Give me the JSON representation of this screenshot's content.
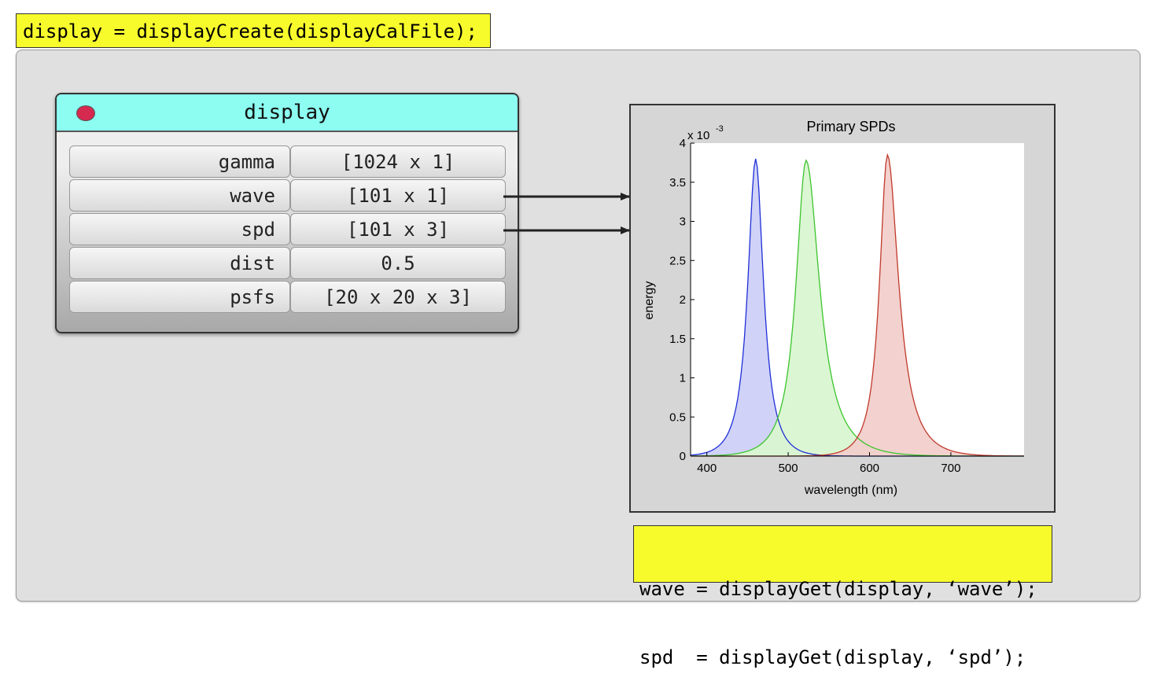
{
  "code": {
    "top": "display = displayCreate(displayCalFile);",
    "bottom": [
      "wave = displayGet(display, ‘wave’);",
      "spd  = displayGet(display, ‘spd’);"
    ]
  },
  "struct": {
    "name": "display",
    "fields": [
      {
        "key": "gamma",
        "value": "[1024 x 1]"
      },
      {
        "key": "wave",
        "value": "[101 x 1]"
      },
      {
        "key": "spd",
        "value": "[101 x 3]"
      },
      {
        "key": "dist",
        "value": "0.5"
      },
      {
        "key": "psfs",
        "value": "[20 x 20 x 3]"
      }
    ]
  },
  "colors": {
    "header": "#8cfdf0",
    "code_bg": "#f7fb2c",
    "dot": "#d6294f"
  },
  "chart_data": {
    "type": "area",
    "title": "Primary SPDs",
    "xlabel": "wavelength (nm)",
    "ylabel": "energy",
    "y_exponent_label": "x 10",
    "y_exponent": "-3",
    "xlim": [
      380,
      790
    ],
    "ylim": [
      0,
      4
    ],
    "xticks": [
      400,
      500,
      600,
      700
    ],
    "yticks": [
      0,
      0.5,
      1,
      1.5,
      2,
      2.5,
      3,
      3.5,
      4
    ],
    "ytick_labels": [
      "0",
      "0.5",
      "1",
      "1.5",
      "2",
      "2.5",
      "3",
      "3.5",
      "4"
    ],
    "series": [
      {
        "color": "#1f2fd8",
        "fill": "#cdd0f7",
        "peak": 460,
        "amplitude": 3.8,
        "width_left": 14,
        "width_right": 14,
        "baseline": 0.03
      },
      {
        "color": "#3cc42e",
        "fill": "#d9f6d0",
        "peak": 522,
        "amplitude": 3.78,
        "width_left": 18,
        "width_right": 24,
        "baseline": 0.02
      },
      {
        "color": "#c0392b",
        "fill": "#f2cfcb",
        "peak": 622,
        "amplitude": 3.85,
        "width_left": 14,
        "width_right": 20,
        "baseline": 0.02
      }
    ]
  }
}
